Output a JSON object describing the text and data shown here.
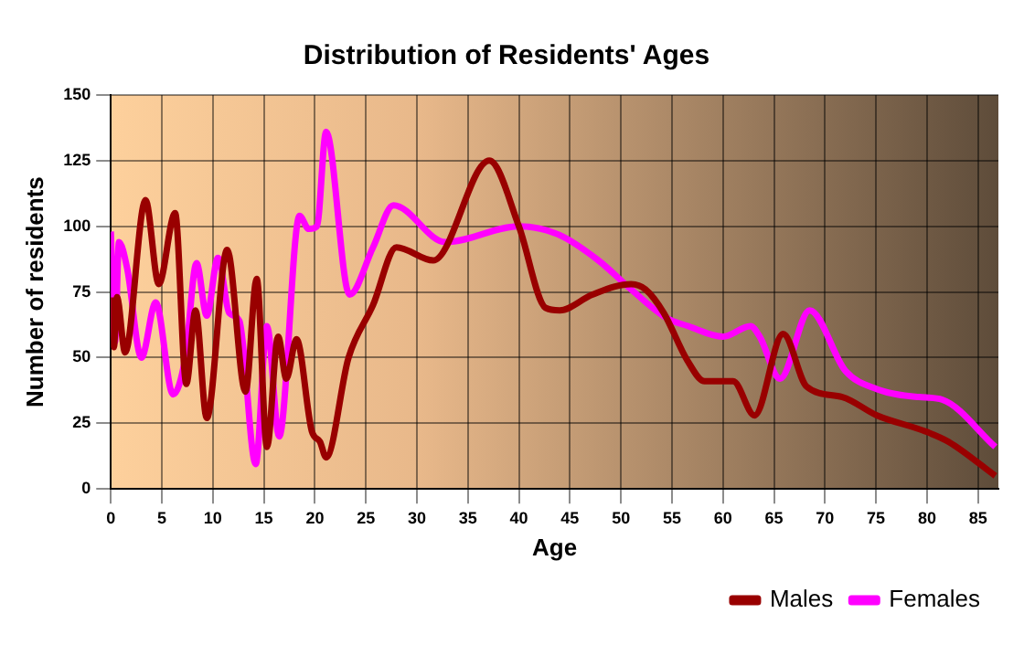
{
  "chart_data": {
    "type": "line",
    "title": "Distribution of Residents' Ages",
    "xlabel": "Age",
    "ylabel": "Number of residents",
    "xlim": [
      0,
      87
    ],
    "xticks": [
      0,
      5,
      10,
      15,
      20,
      25,
      30,
      35,
      40,
      45,
      50,
      55,
      60,
      65,
      70,
      75,
      80,
      85
    ],
    "ylim": [
      0,
      150
    ],
    "yticks": [
      0,
      25,
      50,
      75,
      100,
      125,
      150
    ],
    "grid": true,
    "legend": "bottom right",
    "marker": "none",
    "line_style": "solid",
    "series": [
      {
        "name": "Males",
        "color": "#990000",
        "x": [
          0.1,
          0.3,
          0.6,
          1.4,
          3.4,
          4.7,
          6.3,
          7.4,
          8.3,
          9.4,
          11.4,
          13.2,
          14.3,
          15.3,
          16.4,
          17.2,
          18.2,
          19.7,
          20.5,
          21.1,
          23.3,
          25.7,
          28,
          31.6,
          37.1,
          40,
          42.6,
          44,
          47.2,
          51,
          52.4,
          54.2,
          56.5,
          58.2,
          61,
          63.1,
          65.9,
          68.2,
          71.7,
          75.1,
          79.8,
          82.1,
          86.7
        ],
        "values": [
          73,
          54,
          73,
          52,
          110,
          78,
          105,
          40,
          68,
          27,
          91,
          37,
          80,
          16,
          58,
          42,
          57,
          22,
          18,
          12,
          50,
          70,
          92,
          87,
          125,
          100,
          69,
          68,
          74,
          78,
          76,
          67,
          49,
          41,
          41,
          28,
          59,
          39,
          35,
          28,
          22,
          18,
          5
        ]
      },
      {
        "name": "Females",
        "color": "#ff00ff",
        "x": [
          0,
          0.4,
          0.8,
          1.6,
          3,
          4.4,
          6.1,
          7.3,
          8.4,
          9.4,
          10.5,
          11.6,
          12.6,
          14.2,
          15.3,
          16.5,
          18.5,
          19.4,
          20.2,
          21.1,
          23.4,
          25.7,
          27.7,
          32.8,
          40,
          43.8,
          47.8,
          50.7,
          54.5,
          56.6,
          60,
          62.7,
          63.6,
          65.6,
          68.5,
          72,
          75.1,
          79.2,
          81.5,
          86.7
        ],
        "values": [
          98,
          56,
          94,
          84,
          50,
          71,
          36,
          50,
          86,
          66,
          88,
          67,
          64,
          9.5,
          62,
          20,
          104,
          99,
          100,
          136,
          74,
          92,
          108,
          94,
          100,
          97,
          87,
          77,
          65,
          62,
          58,
          62,
          58,
          42,
          68,
          45,
          38,
          35,
          34,
          16
        ]
      }
    ]
  }
}
